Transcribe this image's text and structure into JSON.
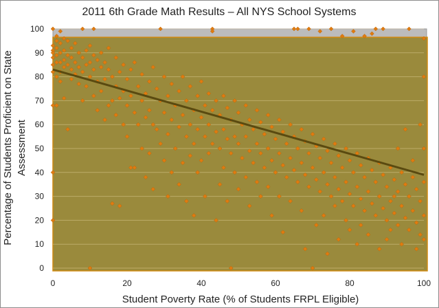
{
  "chart_data": {
    "type": "scatter",
    "title": "2011 6th Grade Math Results – All NYS School Systems",
    "xlabel": "Student Poverty Rate (% of Students FRPL Eligible)",
    "ylabel_line1": "Percentage of Students Proficient on State",
    "ylabel_line2": "Assessment",
    "xlim": [
      0,
      100
    ],
    "ylim": [
      0,
      100
    ],
    "xticks": [
      "0",
      "20",
      "40",
      "60",
      "80",
      "100"
    ],
    "yticks": [
      "0",
      "10",
      "20",
      "30",
      "40",
      "50",
      "60",
      "70",
      "80",
      "90",
      "100"
    ],
    "grid": "horizontal",
    "legend": "none",
    "colors": {
      "points": "#e07b10",
      "points_edge": "#b35f05",
      "trendline": "#5a4a10",
      "plot_band": "#9a8a3c",
      "plot_band_edge": "#d08a10",
      "upper_band": "#bcbcbc"
    },
    "trendline": {
      "x": [
        0,
        100
      ],
      "y": [
        83,
        39
      ]
    },
    "points": [
      [
        0,
        100
      ],
      [
        0,
        93
      ],
      [
        0,
        91
      ],
      [
        0,
        90
      ],
      [
        0,
        88
      ],
      [
        0,
        85
      ],
      [
        0,
        82
      ],
      [
        0,
        68
      ],
      [
        0,
        40
      ],
      [
        0,
        20
      ],
      [
        1,
        97
      ],
      [
        1,
        95
      ],
      [
        1,
        92
      ],
      [
        1,
        89
      ],
      [
        1,
        86
      ],
      [
        1,
        80
      ],
      [
        1,
        68
      ],
      [
        2,
        99
      ],
      [
        2,
        94
      ],
      [
        2,
        90
      ],
      [
        2,
        86
      ],
      [
        2,
        82
      ],
      [
        2,
        78
      ],
      [
        3,
        96
      ],
      [
        3,
        91
      ],
      [
        3,
        87
      ],
      [
        3,
        84
      ],
      [
        3,
        71
      ],
      [
        4,
        95
      ],
      [
        4,
        89
      ],
      [
        4,
        85
      ],
      [
        4,
        58
      ],
      [
        5,
        92
      ],
      [
        5,
        88
      ],
      [
        5,
        83
      ],
      [
        5,
        79
      ],
      [
        6,
        94
      ],
      [
        6,
        86
      ],
      [
        6,
        81
      ],
      [
        7,
        90
      ],
      [
        7,
        84
      ],
      [
        7,
        77
      ],
      [
        8,
        100
      ],
      [
        8,
        88
      ],
      [
        8,
        82
      ],
      [
        8,
        70
      ],
      [
        9,
        91
      ],
      [
        9,
        85
      ],
      [
        9,
        76
      ],
      [
        10,
        93
      ],
      [
        10,
        86
      ],
      [
        10,
        80
      ],
      [
        10,
        0
      ],
      [
        11,
        100
      ],
      [
        11,
        89
      ],
      [
        11,
        83
      ],
      [
        11,
        72
      ],
      [
        12,
        87
      ],
      [
        12,
        78
      ],
      [
        12,
        66
      ],
      [
        13,
        90
      ],
      [
        13,
        84
      ],
      [
        13,
        74
      ],
      [
        14,
        86
      ],
      [
        14,
        79
      ],
      [
        14,
        62
      ],
      [
        15,
        92
      ],
      [
        15,
        83
      ],
      [
        15,
        68
      ],
      [
        16,
        80
      ],
      [
        16,
        70
      ],
      [
        16,
        27
      ],
      [
        17,
        88
      ],
      [
        17,
        76
      ],
      [
        17,
        64
      ],
      [
        18,
        26
      ],
      [
        18,
        82
      ],
      [
        18,
        71
      ],
      [
        19,
        85
      ],
      [
        19,
        74
      ],
      [
        19,
        60
      ],
      [
        20,
        79
      ],
      [
        20,
        68
      ],
      [
        20,
        55
      ],
      [
        21,
        83
      ],
      [
        21,
        72
      ],
      [
        21,
        42
      ],
      [
        22,
        86
      ],
      [
        22,
        65
      ],
      [
        22,
        42
      ],
      [
        23,
        76
      ],
      [
        23,
        60
      ],
      [
        24,
        81
      ],
      [
        24,
        70
      ],
      [
        24,
        50
      ],
      [
        25,
        73
      ],
      [
        25,
        63
      ],
      [
        25,
        38
      ],
      [
        26,
        78
      ],
      [
        26,
        66
      ],
      [
        26,
        48
      ],
      [
        27,
        84
      ],
      [
        27,
        60
      ],
      [
        27,
        33
      ],
      [
        28,
        75
      ],
      [
        28,
        58
      ],
      [
        29,
        100
      ],
      [
        29,
        70
      ],
      [
        29,
        52
      ],
      [
        30,
        80
      ],
      [
        30,
        65
      ],
      [
        30,
        45
      ],
      [
        31,
        72
      ],
      [
        31,
        56
      ],
      [
        31,
        30
      ],
      [
        32,
        77
      ],
      [
        32,
        62
      ],
      [
        32,
        40
      ],
      [
        33,
        68
      ],
      [
        33,
        50
      ],
      [
        34,
        74
      ],
      [
        34,
        59
      ],
      [
        34,
        35
      ],
      [
        35,
        80
      ],
      [
        35,
        64
      ],
      [
        35,
        44
      ],
      [
        36,
        70
      ],
      [
        36,
        55
      ],
      [
        36,
        28
      ],
      [
        37,
        76
      ],
      [
        37,
        60
      ],
      [
        37,
        47
      ],
      [
        38,
        66
      ],
      [
        38,
        52
      ],
      [
        38,
        22
      ],
      [
        39,
        72
      ],
      [
        39,
        58
      ],
      [
        39,
        40
      ],
      [
        40,
        78
      ],
      [
        40,
        63
      ],
      [
        40,
        45
      ],
      [
        41,
        68
      ],
      [
        41,
        55
      ],
      [
        41,
        30
      ],
      [
        42,
        73
      ],
      [
        42,
        60
      ],
      [
        42,
        48
      ],
      [
        43,
        100
      ],
      [
        43,
        99
      ],
      [
        43,
        66
      ],
      [
        43,
        52
      ],
      [
        44,
        70
      ],
      [
        44,
        57
      ],
      [
        44,
        20
      ],
      [
        45,
        64
      ],
      [
        45,
        50
      ],
      [
        45,
        35
      ],
      [
        46,
        72
      ],
      [
        46,
        58
      ],
      [
        46,
        42
      ],
      [
        47,
        67
      ],
      [
        47,
        54
      ],
      [
        47,
        28
      ],
      [
        48,
        62
      ],
      [
        48,
        48
      ],
      [
        48,
        0
      ],
      [
        49,
        70
      ],
      [
        49,
        55
      ],
      [
        49,
        40
      ],
      [
        50,
        65
      ],
      [
        50,
        52
      ],
      [
        50,
        33
      ],
      [
        51,
        60
      ],
      [
        51,
        46
      ],
      [
        52,
        68
      ],
      [
        52,
        55
      ],
      [
        52,
        38
      ],
      [
        53,
        62
      ],
      [
        53,
        49
      ],
      [
        53,
        26
      ],
      [
        54,
        58
      ],
      [
        54,
        44
      ],
      [
        55,
        66
      ],
      [
        55,
        52
      ],
      [
        55,
        36
      ],
      [
        56,
        61
      ],
      [
        56,
        48
      ],
      [
        56,
        30
      ],
      [
        57,
        56
      ],
      [
        57,
        42
      ],
      [
        58,
        64
      ],
      [
        58,
        50
      ],
      [
        58,
        34
      ],
      [
        59,
        59
      ],
      [
        59,
        45
      ],
      [
        59,
        22
      ],
      [
        60,
        54
      ],
      [
        60,
        40
      ],
      [
        61,
        62
      ],
      [
        61,
        48
      ],
      [
        61,
        30
      ],
      [
        62,
        57
      ],
      [
        62,
        43
      ],
      [
        62,
        15
      ],
      [
        63,
        52
      ],
      [
        63,
        38
      ],
      [
        64,
        60
      ],
      [
        64,
        46
      ],
      [
        64,
        28
      ],
      [
        65,
        55
      ],
      [
        65,
        41
      ],
      [
        65,
        100
      ],
      [
        66,
        50
      ],
      [
        66,
        36
      ],
      [
        66,
        100
      ],
      [
        67,
        58
      ],
      [
        67,
        44
      ],
      [
        67,
        24
      ],
      [
        68,
        53
      ],
      [
        68,
        39
      ],
      [
        68,
        8
      ],
      [
        69,
        48
      ],
      [
        69,
        34
      ],
      [
        69,
        100
      ],
      [
        70,
        56
      ],
      [
        70,
        42
      ],
      [
        70,
        0
      ],
      [
        71,
        51
      ],
      [
        71,
        37
      ],
      [
        71,
        18
      ],
      [
        72,
        46
      ],
      [
        72,
        32
      ],
      [
        72,
        99
      ],
      [
        73,
        54
      ],
      [
        73,
        40
      ],
      [
        73,
        22
      ],
      [
        74,
        49
      ],
      [
        74,
        35
      ],
      [
        74,
        6
      ],
      [
        75,
        44
      ],
      [
        75,
        30
      ],
      [
        75,
        100
      ],
      [
        76,
        52
      ],
      [
        76,
        38
      ],
      [
        76,
        26
      ],
      [
        77,
        47
      ],
      [
        77,
        33
      ],
      [
        77,
        12
      ],
      [
        78,
        42
      ],
      [
        78,
        28
      ],
      [
        78,
        97
      ],
      [
        79,
        50
      ],
      [
        79,
        36
      ],
      [
        79,
        20
      ],
      [
        80,
        45
      ],
      [
        80,
        31
      ],
      [
        80,
        16
      ],
      [
        81,
        40
      ],
      [
        81,
        26
      ],
      [
        81,
        99
      ],
      [
        82,
        48
      ],
      [
        82,
        34
      ],
      [
        82,
        10
      ],
      [
        83,
        43
      ],
      [
        83,
        29
      ],
      [
        83,
        18
      ],
      [
        84,
        38
      ],
      [
        84,
        24
      ],
      [
        84,
        97
      ],
      [
        85,
        46
      ],
      [
        85,
        32
      ],
      [
        85,
        14
      ],
      [
        86,
        41
      ],
      [
        86,
        27
      ],
      [
        86,
        98
      ],
      [
        87,
        36
      ],
      [
        87,
        22
      ],
      [
        87,
        100
      ],
      [
        88,
        44
      ],
      [
        88,
        30
      ],
      [
        88,
        8
      ],
      [
        89,
        39
      ],
      [
        89,
        25
      ],
      [
        89,
        100
      ],
      [
        90,
        34
      ],
      [
        90,
        20
      ],
      [
        90,
        12
      ],
      [
        91,
        42
      ],
      [
        91,
        28
      ],
      [
        91,
        16
      ],
      [
        92,
        37
      ],
      [
        92,
        23
      ],
      [
        92,
        30
      ],
      [
        93,
        32
      ],
      [
        93,
        18
      ],
      [
        93,
        50
      ],
      [
        94,
        40
      ],
      [
        94,
        26
      ],
      [
        94,
        10
      ],
      [
        95,
        35
      ],
      [
        95,
        21
      ],
      [
        95,
        58
      ],
      [
        96,
        30
      ],
      [
        96,
        16
      ],
      [
        96,
        100
      ],
      [
        97,
        38
      ],
      [
        97,
        24
      ],
      [
        97,
        45
      ],
      [
        98,
        33
      ],
      [
        98,
        19
      ],
      [
        98,
        8
      ],
      [
        99,
        28
      ],
      [
        99,
        14
      ],
      [
        99,
        60
      ],
      [
        100,
        36
      ],
      [
        100,
        22
      ],
      [
        100,
        12
      ],
      [
        100,
        50
      ],
      [
        100,
        80
      ],
      [
        100,
        96
      ]
    ]
  }
}
